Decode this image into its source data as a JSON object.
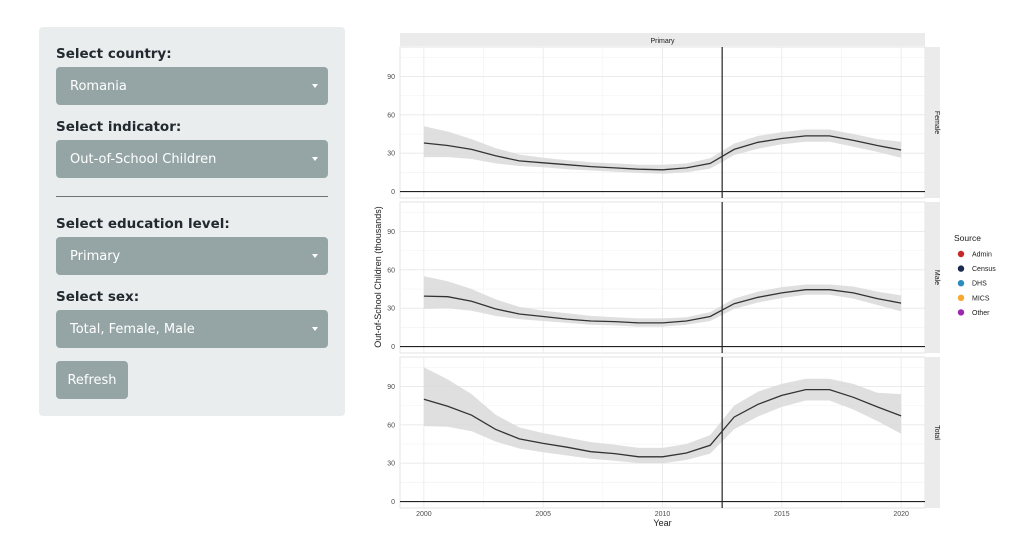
{
  "controls": {
    "country": {
      "label": "Select country:",
      "value": "Romania"
    },
    "indicator": {
      "label": "Select indicator:",
      "value": "Out-of-School Children"
    },
    "education_level": {
      "label": "Select education level:",
      "value": "Primary"
    },
    "sex": {
      "label": "Select sex:",
      "value": "Total, Female, Male"
    },
    "refresh_label": "Refresh"
  },
  "colors": {
    "sidebar_bg": "#e9edee",
    "control_bg": "#95a5a6",
    "panel_bg": "#ebebeb",
    "band": "#d9d9d9",
    "line": "#333333"
  },
  "chart_data": {
    "type": "line",
    "facet_column": "Primary",
    "xlabel": "Year",
    "ylabel": "Out-of-School Children (thousands)",
    "x_ticks": [
      2000,
      2005,
      2010,
      2015,
      2020
    ],
    "y_ticks": [
      0,
      30,
      60,
      90
    ],
    "xlim": [
      1999,
      2021
    ],
    "vline_x": 2012.5,
    "grid": true,
    "legend": {
      "title": "Source",
      "position": "right",
      "items": [
        {
          "name": "Admin",
          "color": "#c62828"
        },
        {
          "name": "Census",
          "color": "#1a2a4f"
        },
        {
          "name": "DHS",
          "color": "#2b8cbe"
        },
        {
          "name": "MICS",
          "color": "#f7a832"
        },
        {
          "name": "Other",
          "color": "#9c27b0"
        }
      ]
    },
    "panels": [
      {
        "name": "Female",
        "ylim": [
          -5,
          113
        ],
        "x": [
          2000,
          2001,
          2002,
          2003,
          2004,
          2005,
          2006,
          2007,
          2008,
          2009,
          2010,
          2011,
          2012,
          2013,
          2014,
          2015,
          2016,
          2017,
          2018,
          2019,
          2020
        ],
        "y": [
          38,
          36,
          33,
          28,
          24,
          22.5,
          21,
          19.5,
          18.5,
          17.5,
          17,
          18.5,
          22,
          33,
          38.5,
          41.5,
          43.5,
          43.5,
          40,
          36,
          32.5
        ],
        "y_lower": [
          27,
          27,
          25.5,
          22,
          20,
          19,
          17.5,
          16.5,
          15.5,
          14.5,
          14,
          15,
          18,
          28.5,
          33.5,
          37,
          39,
          39,
          35,
          31,
          26.5
        ],
        "y_upper": [
          51,
          47,
          41,
          34,
          29,
          26.5,
          24.5,
          23,
          22,
          21,
          21,
          22,
          26,
          37.5,
          43.5,
          46.5,
          48.5,
          48.5,
          45,
          41,
          39
        ]
      },
      {
        "name": "Male",
        "ylim": [
          -5,
          113
        ],
        "x": [
          2000,
          2001,
          2002,
          2003,
          2004,
          2005,
          2006,
          2007,
          2008,
          2009,
          2010,
          2011,
          2012,
          2013,
          2014,
          2015,
          2016,
          2017,
          2018,
          2019,
          2020
        ],
        "y": [
          39.5,
          39,
          35.5,
          29.5,
          25.5,
          23.5,
          21.5,
          20,
          19.5,
          18.5,
          18.5,
          20,
          23.5,
          33.5,
          38.5,
          42,
          44.5,
          44.5,
          42,
          37.5,
          34
        ],
        "y_lower": [
          29.5,
          30,
          28,
          24,
          21.5,
          20,
          18.5,
          17,
          16.5,
          15.5,
          15.5,
          17,
          20,
          29.5,
          34.5,
          38,
          40.5,
          40.5,
          37.5,
          32.5,
          27.5
        ],
        "y_upper": [
          55,
          51,
          45,
          37,
          31,
          28,
          26,
          24,
          23,
          22,
          22,
          23,
          27,
          37.5,
          43,
          46.5,
          48.5,
          48.5,
          47,
          43,
          40
        ]
      },
      {
        "name": "Total",
        "ylim": [
          -5,
          113
        ],
        "x": [
          2000,
          2001,
          2002,
          2003,
          2004,
          2005,
          2006,
          2007,
          2008,
          2009,
          2010,
          2011,
          2012,
          2013,
          2014,
          2015,
          2016,
          2017,
          2018,
          2019,
          2020
        ],
        "y": [
          80,
          74.5,
          67.5,
          56.5,
          49,
          45.5,
          42.5,
          39,
          37.5,
          35,
          35,
          38,
          44,
          66,
          76,
          83,
          87.5,
          87.5,
          81.5,
          74,
          67
        ],
        "y_lower": [
          59,
          58.5,
          55,
          47,
          41.5,
          38.5,
          36,
          33.5,
          32,
          30,
          30,
          32.5,
          37.5,
          56.5,
          66.5,
          74,
          79,
          79,
          72,
          63,
          53
        ],
        "y_upper": [
          105,
          95.5,
          84,
          68,
          58,
          53.5,
          50,
          46.5,
          44.5,
          42,
          42,
          45,
          52,
          75,
          86,
          92,
          96,
          96,
          92,
          85,
          84
        ]
      }
    ]
  }
}
